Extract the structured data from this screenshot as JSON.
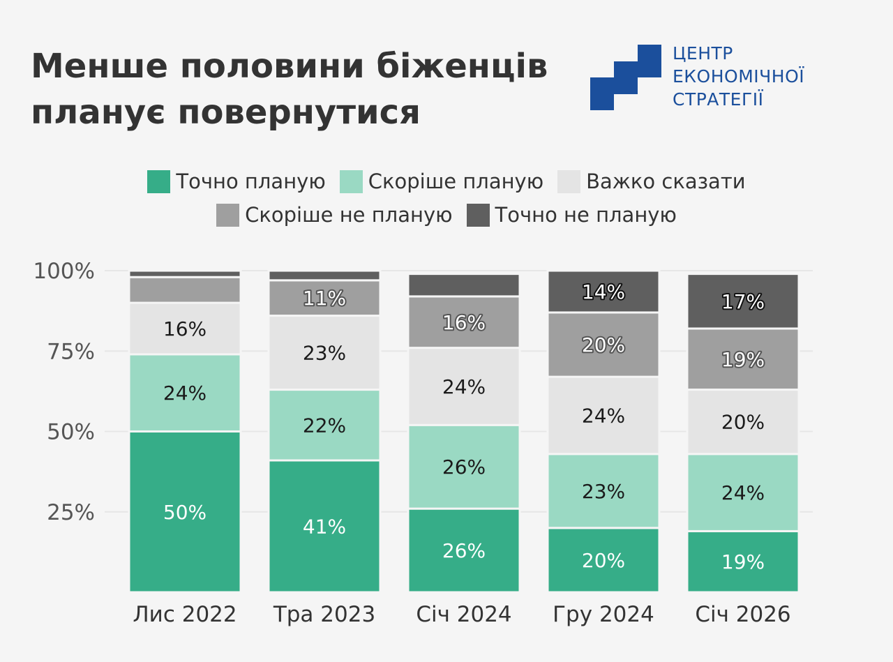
{
  "title": {
    "line1": "Менше половини біженців",
    "line2": "планує повернутися"
  },
  "logo": {
    "line1": "ЦЕНТР",
    "line2": "ЕКОНОМІЧНОЇ",
    "line3": "СТРАТЕГІЇ",
    "color": "#1b4f9c"
  },
  "legend": [
    {
      "label": "Точно планую",
      "color": "#36ad88"
    },
    {
      "label": "Скоріше планую",
      "color": "#9ad9c3"
    },
    {
      "label": "Важко сказати",
      "color": "#e4e4e4"
    },
    {
      "label": "Скоріше не планую",
      "color": "#9f9f9f"
    },
    {
      "label": "Точно не планую",
      "color": "#5f5f5f"
    }
  ],
  "chart_data": {
    "type": "bar",
    "stacked": true,
    "categories": [
      "Лис 2022",
      "Тра 2023",
      "Січ 2024",
      "Гру 2024",
      "Січ 2026"
    ],
    "series": [
      {
        "name": "Точно планую",
        "values": [
          50,
          41,
          26,
          20,
          19
        ]
      },
      {
        "name": "Скоріше планую",
        "values": [
          24,
          22,
          26,
          23,
          24
        ]
      },
      {
        "name": "Важко сказати",
        "values": [
          16,
          23,
          24,
          24,
          20
        ]
      },
      {
        "name": "Скоріше не планую",
        "values": [
          8,
          11,
          16,
          20,
          19
        ]
      },
      {
        "name": "Точно не планую",
        "values": [
          2,
          3,
          7,
          14,
          17
        ]
      }
    ],
    "data_labels": [
      [
        "50%",
        "41%",
        "26%",
        "20%",
        "19%"
      ],
      [
        "24%",
        "22%",
        "26%",
        "23%",
        "24%"
      ],
      [
        "16%",
        "23%",
        "24%",
        "24%",
        "20%"
      ],
      [
        "",
        "11%",
        "16%",
        "20%",
        "19%"
      ],
      [
        "",
        "",
        "",
        "14%",
        "17%"
      ]
    ],
    "yticks": [
      {
        "value": 25,
        "label": "25%"
      },
      {
        "value": 50,
        "label": "50%"
      },
      {
        "value": 75,
        "label": "75%"
      },
      {
        "value": 100,
        "label": "100%"
      }
    ],
    "ylim": [
      0,
      100
    ],
    "grid": true,
    "legend_position": "top"
  }
}
